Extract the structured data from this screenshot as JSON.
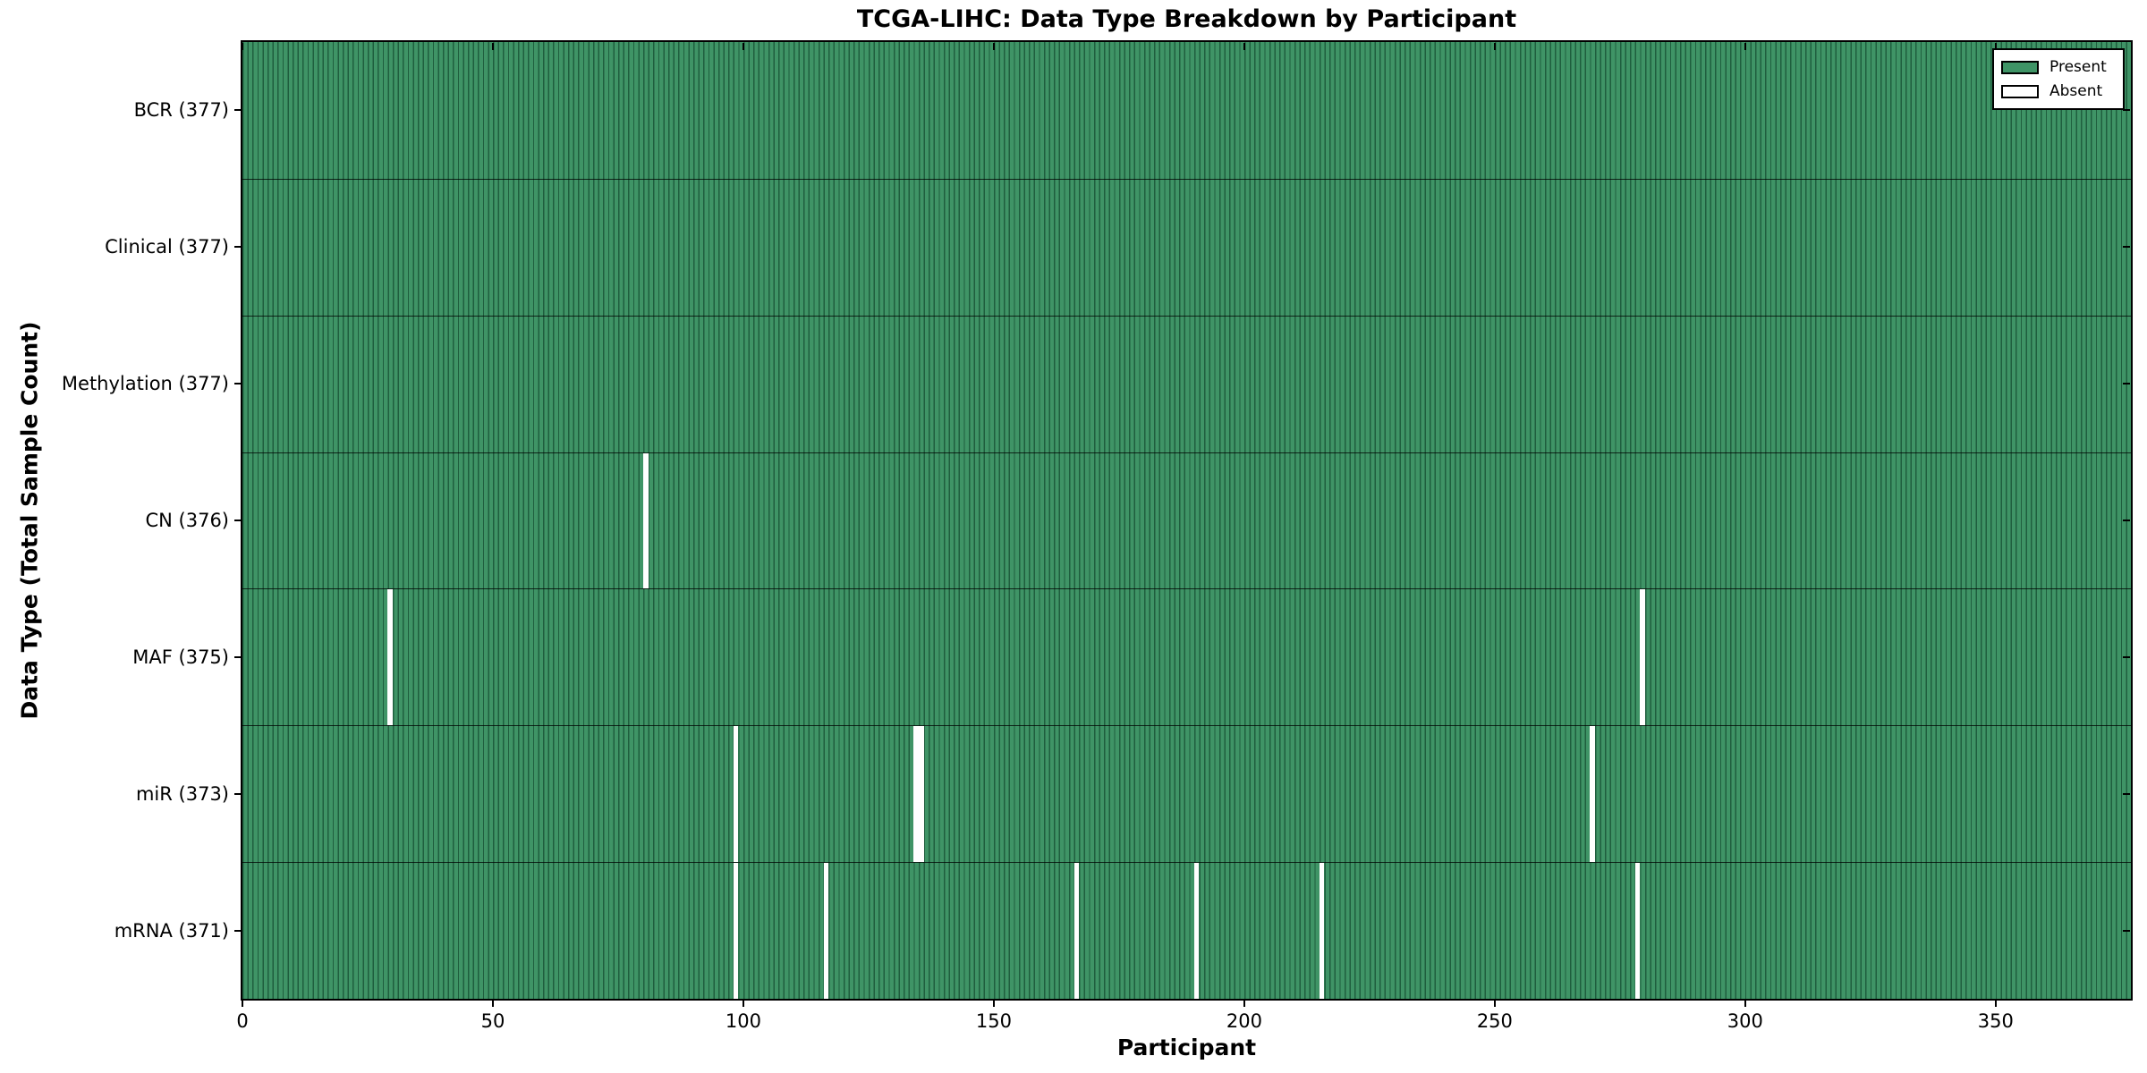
{
  "chart_data": {
    "type": "heatmap",
    "subtype": "presence-absence-matrix",
    "title": "TCGA-LIHC: Data Type Breakdown by Participant",
    "xlabel": "Participant",
    "ylabel": "Data Type (Total Sample Count)",
    "x_min": 0,
    "x_max": 377,
    "x_ticks": [
      0,
      50,
      100,
      150,
      200,
      250,
      300,
      350
    ],
    "grid": false,
    "legend_position": "upper right",
    "legend": [
      {
        "label": "Present",
        "color": "#3f9466"
      },
      {
        "label": "Absent",
        "color": "#ffffff"
      }
    ],
    "rows": [
      {
        "label": "BCR (377)",
        "data_type": "BCR",
        "total": 377,
        "absent_participants": []
      },
      {
        "label": "Clinical (377)",
        "data_type": "Clinical",
        "total": 377,
        "absent_participants": []
      },
      {
        "label": "Methylation (377)",
        "data_type": "Methylation",
        "total": 377,
        "absent_participants": []
      },
      {
        "label": "CN (376)",
        "data_type": "CN",
        "total": 376,
        "absent_participants": [
          80
        ]
      },
      {
        "label": "MAF (375)",
        "data_type": "MAF",
        "total": 375,
        "absent_participants": [
          29,
          279
        ]
      },
      {
        "label": "miR (373)",
        "data_type": "miR",
        "total": 373,
        "absent_participants": [
          98,
          134,
          135,
          269
        ]
      },
      {
        "label": "mRNA (371)",
        "data_type": "mRNA",
        "total": 371,
        "absent_participants": [
          98,
          116,
          166,
          190,
          215,
          278
        ]
      }
    ],
    "colors": {
      "bar_fill": "#3f9466",
      "bar_edge": "#1f5e3e",
      "absent": "#ffffff",
      "axis": "#000000",
      "background": "#ffffff"
    }
  }
}
